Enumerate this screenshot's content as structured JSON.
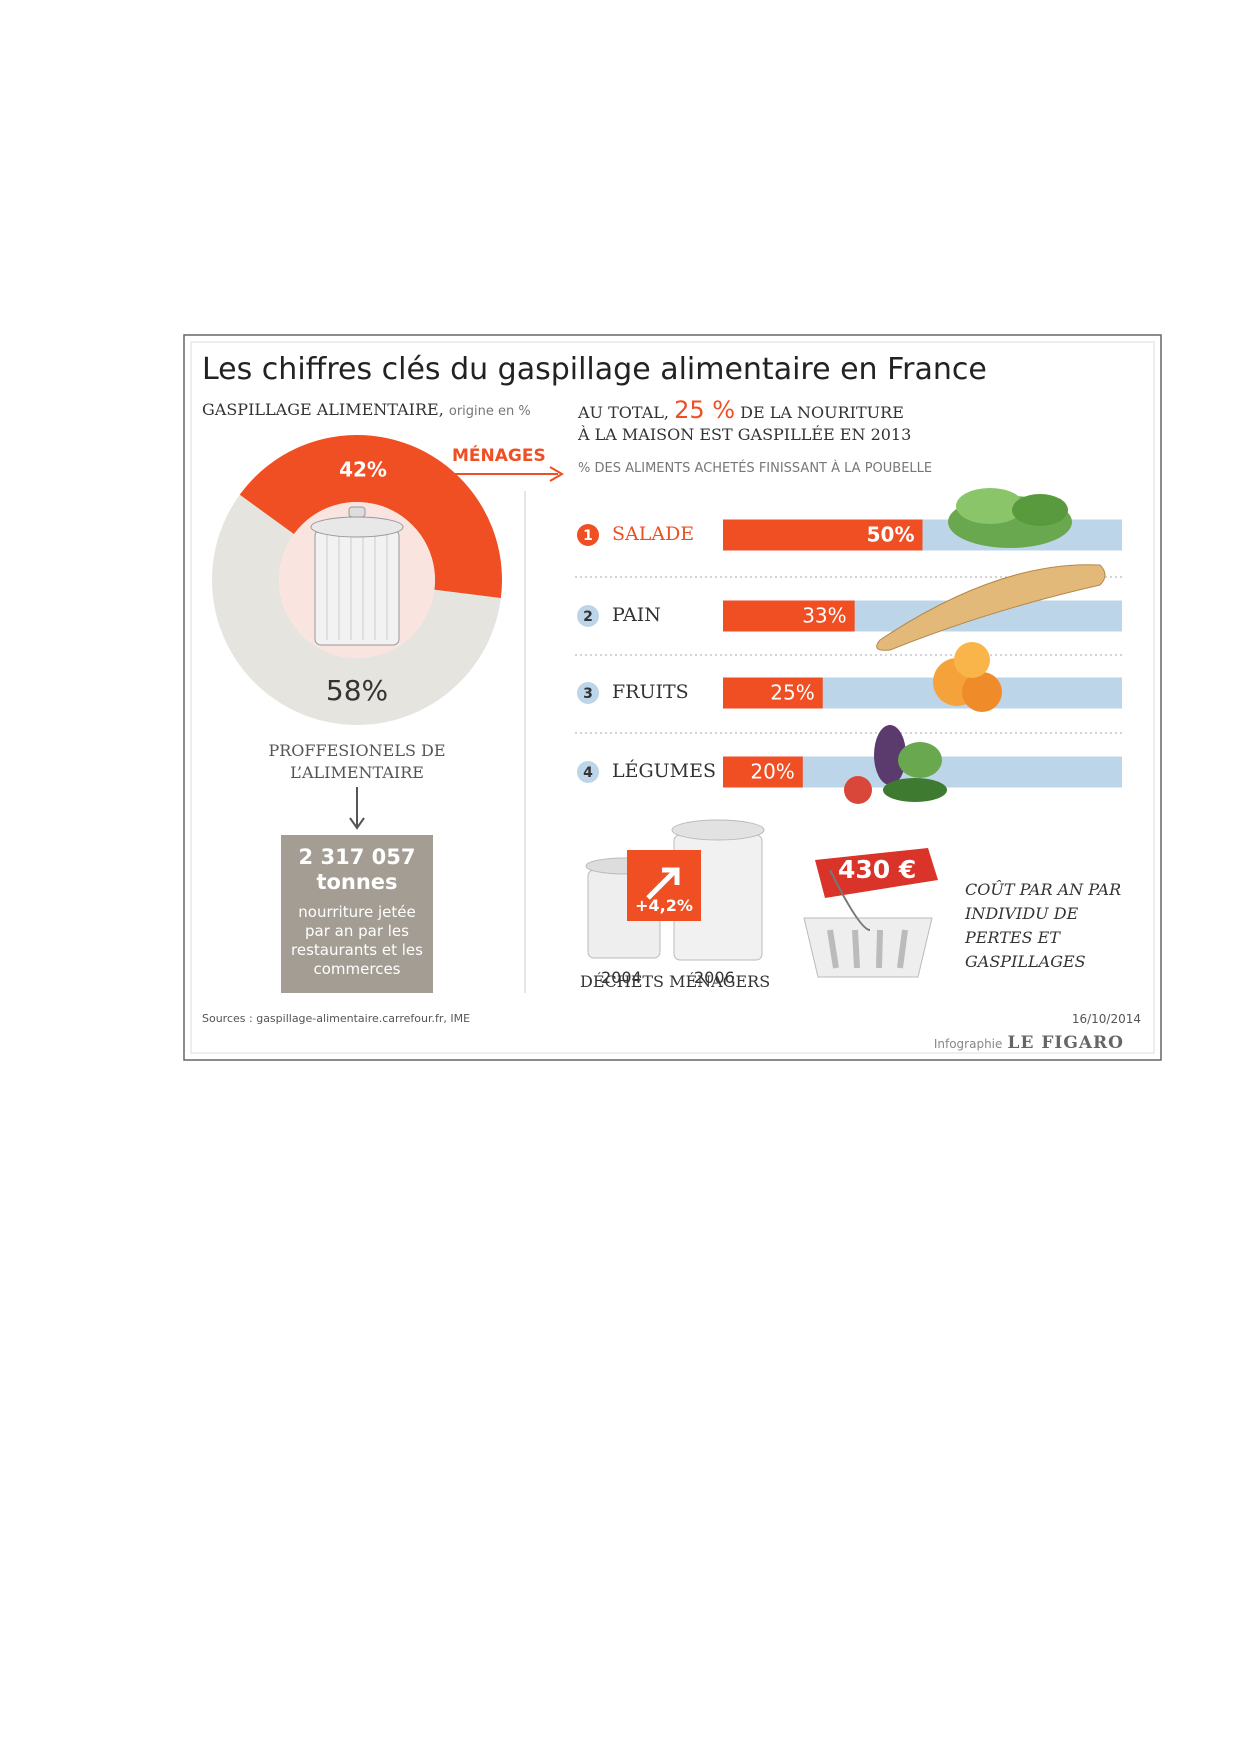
{
  "title": "Les chiffres clés du gaspillage alimentaire en France",
  "chart_data": [
    {
      "type": "pie",
      "title": "GASPILLAGE ALIMENTAIRE,",
      "subtitle": "origine en %",
      "categories": [
        "MÉNAGES",
        "PROFFESIONELS DE L’ALIMENTAIRE"
      ],
      "values": [
        42,
        58
      ],
      "value_labels": [
        "42%",
        "58%"
      ],
      "colors": [
        "#f04e23",
        "#e6e4de"
      ]
    },
    {
      "type": "bar",
      "title": "% DES ALIMENTS ACHETÉS FINISSANT À LA POUBELLE",
      "ranks": [
        1,
        2,
        3,
        4
      ],
      "categories": [
        "SALADE",
        "PAIN",
        "FRUITS",
        "LÉGUMES"
      ],
      "values": [
        50,
        33,
        25,
        20
      ],
      "value_labels": [
        "50%",
        "33%",
        "25%",
        "20%"
      ],
      "xlim": [
        0,
        100
      ],
      "color": "#f04e23",
      "track_color": "#bcd5e8"
    }
  ],
  "headline": {
    "lead": "AU TOTAL,",
    "highlight": "25 %",
    "rest": "DE LA NOURITURE",
    "line2": "À LA MAISON EST GASPILLÉE EN 2013"
  },
  "tonnage": {
    "amount": "2 317 057",
    "unit": "tonnes",
    "text": "nourriture jetée par an par les restaurants et les commerces"
  },
  "household_waste": {
    "years": [
      "2004",
      "2006"
    ],
    "change": "+4,2%",
    "label": "DÉCHETS MÉNAGERS"
  },
  "cost": {
    "amount": "430 €",
    "text": "COÛT PAR AN PAR INDIVIDU DE PERTES ET GASPILLAGES"
  },
  "footer": {
    "sources": "Sources : gaspillage-alimentaire.carrefour.fr, IME",
    "date": "16/10/2014",
    "credit": "Infographie",
    "publisher": "LE FIGARO"
  }
}
